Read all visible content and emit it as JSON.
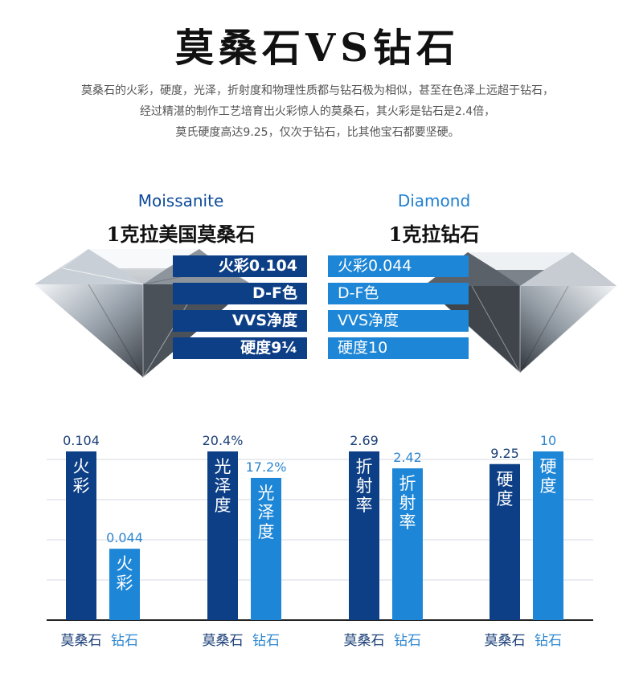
{
  "header": {
    "title": "莫桑石VS钻石",
    "intro_lines": [
      "莫桑石的火彩，硬度，光泽，折射度和物理性质都与钻石极为相似，甚至在色泽上远超于钻石，",
      "经过精湛的制作工艺培育出火彩惊人的莫桑石，其火彩是钻石是2.4倍，",
      "莫氏硬度高达9.25，仅次于钻石，比其他宝石都要坚硬。"
    ]
  },
  "compare": {
    "moissanite": {
      "en": "Moissanite",
      "cn": "1克拉美国莫桑石",
      "specs": [
        "火彩0.104",
        "D-F色",
        "VVS净度",
        "硬度9¼"
      ]
    },
    "diamond": {
      "en": "Diamond",
      "cn": "1克拉钻石",
      "specs": [
        "火彩0.044",
        "D-F色",
        "VVS净度",
        "硬度10"
      ]
    }
  },
  "colors": {
    "moissanite": "#0d3f86",
    "diamond": "#1e86d6"
  },
  "chart_data": {
    "type": "bar",
    "categories": [
      "火彩",
      "光泽度",
      "折射率",
      "硬度"
    ],
    "group_labels": [
      "莫桑石",
      "钻石"
    ],
    "series": [
      {
        "name": "莫桑石",
        "values": [
          0.104,
          20.4,
          2.69,
          9.25
        ],
        "labels": [
          "0.104",
          "20.4%",
          "2.69",
          "9.25"
        ]
      },
      {
        "name": "钻石",
        "values": [
          0.044,
          17.2,
          2.42,
          10
        ],
        "labels": [
          "0.044",
          "17.2%",
          "2.42",
          "10"
        ]
      }
    ],
    "grid": true
  }
}
